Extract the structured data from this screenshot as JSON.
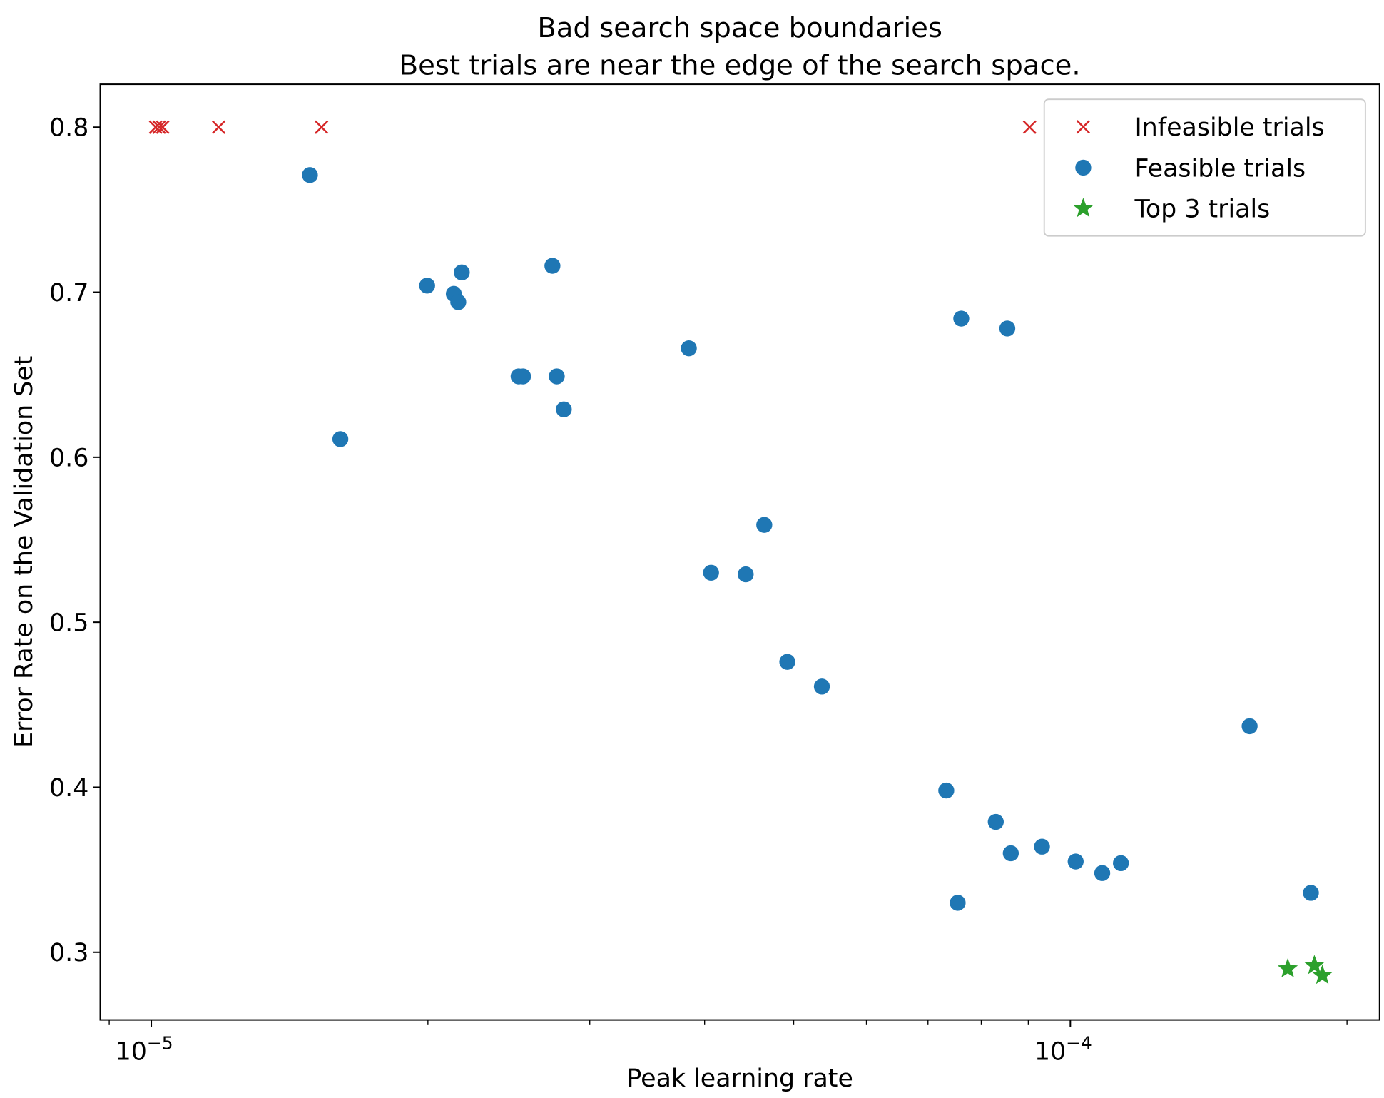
{
  "chart_data": {
    "type": "scatter",
    "title": "Bad search space boundaries",
    "subtitle": "Best trials are near the edge of the search space.",
    "xlabel": "Peak learning rate",
    "ylabel": "Error Rate on the Validation Set",
    "xscale": "log",
    "xlim": [
      8.8e-06,
      0.000217
    ],
    "ylim": [
      0.259,
      0.826
    ],
    "grid": false,
    "legend_position": "top-right",
    "x_ticks": [
      {
        "value": 1e-05,
        "base": "10",
        "exp": "−5"
      },
      {
        "value": 0.0001,
        "base": "10",
        "exp": "−4"
      }
    ],
    "x_minor_ticks": [
      9e-06,
      2e-05,
      3e-05,
      4e-05,
      5e-05,
      6e-05,
      7e-05,
      8e-05,
      9e-05,
      0.0002
    ],
    "y_ticks": [
      0.3,
      0.4,
      0.5,
      0.6,
      0.7,
      0.8
    ],
    "y_tick_labels": [
      "0.3",
      "0.4",
      "0.5",
      "0.6",
      "0.7",
      "0.8"
    ],
    "series": [
      {
        "name": "Infeasible trials",
        "marker": "x",
        "color": "#d62728",
        "x": [
          1.011e-05,
          1.02e-05,
          1.029e-05,
          1.184e-05,
          1.532e-05,
          9.03e-05
        ],
        "y": [
          0.8,
          0.8,
          0.8,
          0.8,
          0.8,
          0.8
        ]
      },
      {
        "name": "Feasible trials",
        "marker": "circle",
        "color": "#1f77b4",
        "x": [
          1.488e-05,
          1.606e-05,
          1.996e-05,
          2.134e-05,
          2.158e-05,
          2.177e-05,
          2.51e-05,
          2.538e-05,
          2.732e-05,
          2.762e-05,
          2.811e-05,
          3.845e-05,
          4.065e-05,
          4.434e-05,
          4.645e-05,
          4.921e-05,
          5.366e-05,
          7.328e-05,
          7.541e-05,
          7.609e-05,
          8.296e-05,
          8.539e-05,
          8.614e-05,
          9.314e-05,
          0.00010134,
          0.00010832,
          0.0001135,
          0.0001567,
          0.0001827
        ],
        "y": [
          0.771,
          0.611,
          0.704,
          0.699,
          0.694,
          0.712,
          0.649,
          0.649,
          0.716,
          0.649,
          0.629,
          0.666,
          0.53,
          0.529,
          0.559,
          0.476,
          0.461,
          0.398,
          0.33,
          0.684,
          0.379,
          0.678,
          0.36,
          0.364,
          0.355,
          0.348,
          0.354,
          0.437,
          0.336
        ]
      },
      {
        "name": "Top 3 trials",
        "marker": "star",
        "color": "#2ca02c",
        "x": [
          0.0001724,
          0.0001843,
          0.000188
        ],
        "y": [
          0.29,
          0.292,
          0.286
        ]
      }
    ]
  }
}
